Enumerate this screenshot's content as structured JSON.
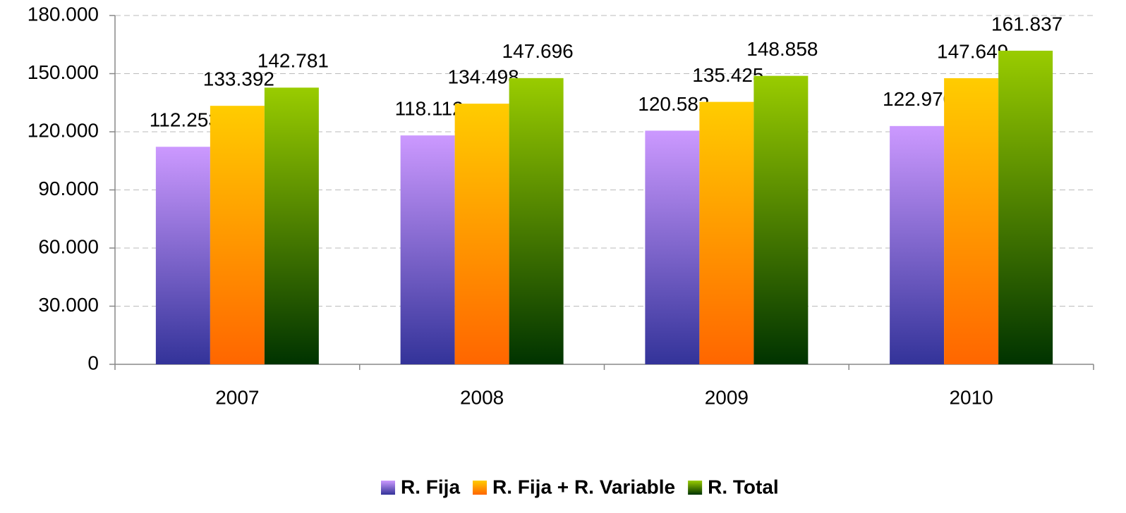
{
  "chart_data": {
    "type": "bar",
    "categories": [
      "2007",
      "2008",
      "2009",
      "2010"
    ],
    "series": [
      {
        "name": "R. Fija",
        "color": "#cc99ff",
        "gradient": [
          "#cc99ff",
          "#333399"
        ],
        "values": [
          112253,
          118112,
          120582,
          122970
        ],
        "value_labels": [
          "112.253",
          "118.112",
          "120.582",
          "122.970"
        ]
      },
      {
        "name": "R. Fija + R. Variable",
        "color": "#ffcc00",
        "gradient": [
          "#ffcc00",
          "#ff6600"
        ],
        "values": [
          133392,
          134498,
          135425,
          147649
        ],
        "value_labels": [
          "133.392",
          "134.498",
          "135.425",
          "147.649"
        ]
      },
      {
        "name": "R. Total",
        "color": "#99cc00",
        "gradient": [
          "#99cc00",
          "#003300"
        ],
        "values": [
          142781,
          147696,
          148858,
          161837
        ],
        "value_labels": [
          "142.781",
          "147.696",
          "148.858",
          "161.837"
        ]
      }
    ],
    "ylim": [
      0,
      180000
    ],
    "yticks": [
      0,
      {
        "value": 30000,
        "label": "30.000"
      },
      {
        "value": 60000,
        "label": "60.000"
      },
      {
        "value": 90000,
        "label": "90.000"
      },
      {
        "value": 120000,
        "label": "120.000"
      },
      {
        "value": 150000,
        "label": "150.000"
      },
      {
        "value": 180000,
        "label": "180.000"
      }
    ],
    "grid": true,
    "legend": "bottom"
  }
}
